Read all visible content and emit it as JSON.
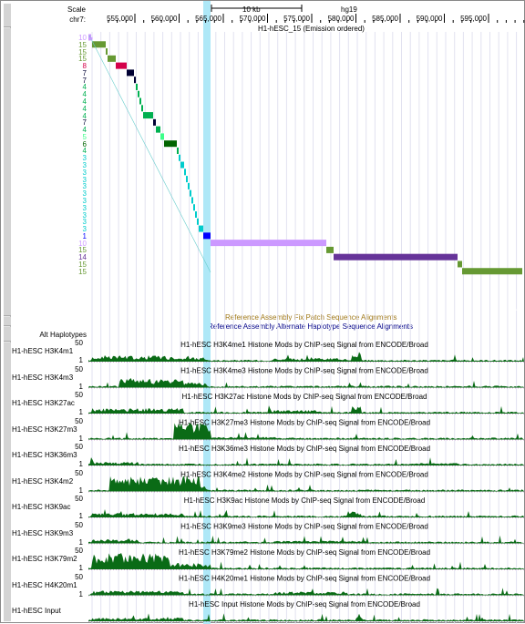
{
  "header": {
    "scale_label": "Scale",
    "chrom_label": "chr7:",
    "scale_bar_text": "10 kb",
    "assembly": "hg19",
    "positions": [
      "555,000",
      "560,000",
      "565,000",
      "570,000",
      "575,000",
      "580,000",
      "585,000",
      "590,000",
      "595,000"
    ]
  },
  "hmm_track": {
    "title": "H1-hESC_15 (Emission ordered)",
    "state_rows": [
      "10",
      "15",
      "15",
      "15",
      "8",
      "7",
      "7",
      "4",
      "4",
      "4",
      "4",
      "4",
      "7",
      "4",
      "5",
      "6",
      "4",
      "3",
      "3",
      "3",
      "3",
      "3",
      "3",
      "3",
      "3",
      "3",
      "3",
      "3",
      "1",
      "10",
      "15",
      "14",
      "15",
      "15"
    ],
    "state_colors": {
      "1": "#0000ff",
      "2": "#0080ff",
      "3": "#00cccc",
      "4": "#00b050",
      "5": "#3cff8a",
      "6": "#006400",
      "7": "#000033",
      "8": "#d4004a",
      "10": "#cc99ff",
      "14": "#663399",
      "15": "#669933"
    }
  },
  "fix_patch": {
    "label": "Reference Assembly Fix Patch Sequence Alignments"
  },
  "alt_haplo": {
    "side_label": "Alt Haplotypes",
    "label": "Reference Assembly Alternate Haplotype Sequence Alignments"
  },
  "signal_tracks": [
    {
      "name": "H1-hESC H3K4m1",
      "title": "H1-hESC H3K4me1 Histone Mods by ChIP-seq Signal from ENCODE/Broad",
      "ymax": "50",
      "ymin": "1"
    },
    {
      "name": "H1-hESC H3K4m3",
      "title": "H1-hESC H3K4me3 Histone Mods by ChIP-seq Signal from ENCODE/Broad",
      "ymax": "50",
      "ymin": "1"
    },
    {
      "name": "H1-hESC H3K27ac",
      "title": "H1-hESC H3K27ac Histone Mods by ChIP-seq Signal from ENCODE/Broad",
      "ymax": "50",
      "ymin": "1"
    },
    {
      "name": "H1-hESC H3K27m3",
      "title": "H1-hESC H3K27me3 Histone Mods by ChIP-seq Signal from ENCODE/Broad",
      "ymax": "50",
      "ymin": "1"
    },
    {
      "name": "H1-hESC H3K36m3",
      "title": "H1-hESC H3K36me3 Histone Mods by ChIP-seq Signal from ENCODE/Broad",
      "ymax": "50",
      "ymin": "1"
    },
    {
      "name": "H1-hESC H3K4m2",
      "title": "H1-hESC H3K4me2 Histone Mods by ChIP-seq Signal from ENCODE/Broad",
      "ymax": "50",
      "ymin": "1"
    },
    {
      "name": "H1-hESC H3K9ac",
      "title": "H1-hESC H3K9ac Histone Mods by ChIP-seq Signal from ENCODE/Broad",
      "ymax": "50",
      "ymin": "1"
    },
    {
      "name": "H1-hESC H3K9m3",
      "title": "H1-hESC H3K9me3 Histone Mods by ChIP-seq Signal from ENCODE/Broad",
      "ymax": "50",
      "ymin": "1"
    },
    {
      "name": "H1-hESC H3K79m2",
      "title": "H1-hESC H3K79me2 Histone Mods by ChIP-seq Signal from ENCODE/Broad",
      "ymax": "50",
      "ymin": "1"
    },
    {
      "name": "H1-hESC H4K20m1",
      "title": "H1-hESC H4K20me1 Histone Mods by ChIP-seq Signal from ENCODE/Broad",
      "ymax": "50",
      "ymin": "1"
    },
    {
      "name": "H1-hESC Input",
      "title": "H1-hESC Input Histone Mods by ChIP-seq Signal from ENCODE/Broad",
      "ymax": "",
      "ymin": ""
    }
  ],
  "colors": {
    "signal_fill": "#0a6b16",
    "highlight": "#aee8f7",
    "grid": "#e2e2f0",
    "fix_patch_text": "#a07818",
    "alt_haplo_text": "#000088",
    "hmm_title": "#000000"
  }
}
